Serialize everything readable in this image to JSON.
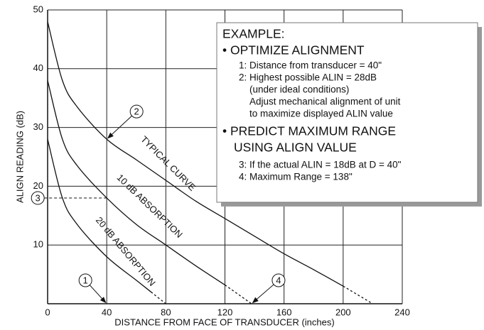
{
  "chart_data": {
    "type": "line",
    "xlabel": "DISTANCE FROM FACE OF TRANSDUCER (inches)",
    "ylabel": "ALIGN READING (dB)",
    "xlim": [
      0,
      240
    ],
    "ylim": [
      0,
      50
    ],
    "xticks": [
      0,
      40,
      80,
      120,
      160,
      200,
      240
    ],
    "yticks": [
      10,
      20,
      30,
      40,
      50
    ],
    "grid": true,
    "series": [
      {
        "name": "TYPICAL CURVE",
        "color": "#111111",
        "x": [
          0,
          10,
          20,
          40,
          60,
          80,
          100,
          120,
          140,
          160,
          180,
          200
        ],
        "values": [
          48,
          38,
          33.5,
          28,
          24.5,
          21,
          17.5,
          14.5,
          11.5,
          8.5,
          5.8,
          3
        ]
      },
      {
        "color": "#111111",
        "dash": true,
        "x": [
          200,
          220
        ],
        "values": [
          3,
          0
        ]
      },
      {
        "name": "10 dB ABSORPTION",
        "color": "#111111",
        "x": [
          0,
          10,
          20,
          40,
          60,
          80,
          100,
          120
        ],
        "values": [
          38,
          28,
          23.5,
          18,
          13.5,
          10,
          6.5,
          3.2
        ]
      },
      {
        "color": "#111111",
        "dash": true,
        "x": [
          120,
          138
        ],
        "values": [
          3.2,
          0
        ]
      },
      {
        "name": "20 dB ABSORPTION",
        "color": "#111111",
        "x": [
          0,
          10,
          20,
          40,
          60,
          70
        ],
        "values": [
          28,
          18,
          13.5,
          8,
          4,
          2
        ]
      },
      {
        "color": "#111111",
        "dash": true,
        "x": [
          70,
          80
        ],
        "values": [
          2,
          0
        ]
      }
    ],
    "annotations": [
      {
        "label": "1",
        "x": 40,
        "y": 0
      },
      {
        "label": "2",
        "x": 40,
        "y": 28
      },
      {
        "label": "3",
        "x": 40,
        "y": 18
      },
      {
        "label": "4",
        "x": 138,
        "y": 0
      }
    ]
  },
  "example": {
    "lines": [
      "EXAMPLE:",
      "• OPTIMIZE ALIGNMENT",
      "1: Distance from transducer = 40\"",
      "2: Highest possible ALIN = 28dB",
      "(under ideal conditions)",
      "Adjust mechanical alignment of unit",
      "to maximize displayed ALIN value",
      "• PREDICT MAXIMUM RANGE",
      "USING ALIGN VALUE",
      "3: If the actual ALIN = 18dB at D = 40\"",
      "4: Maximum Range = 138\""
    ]
  }
}
